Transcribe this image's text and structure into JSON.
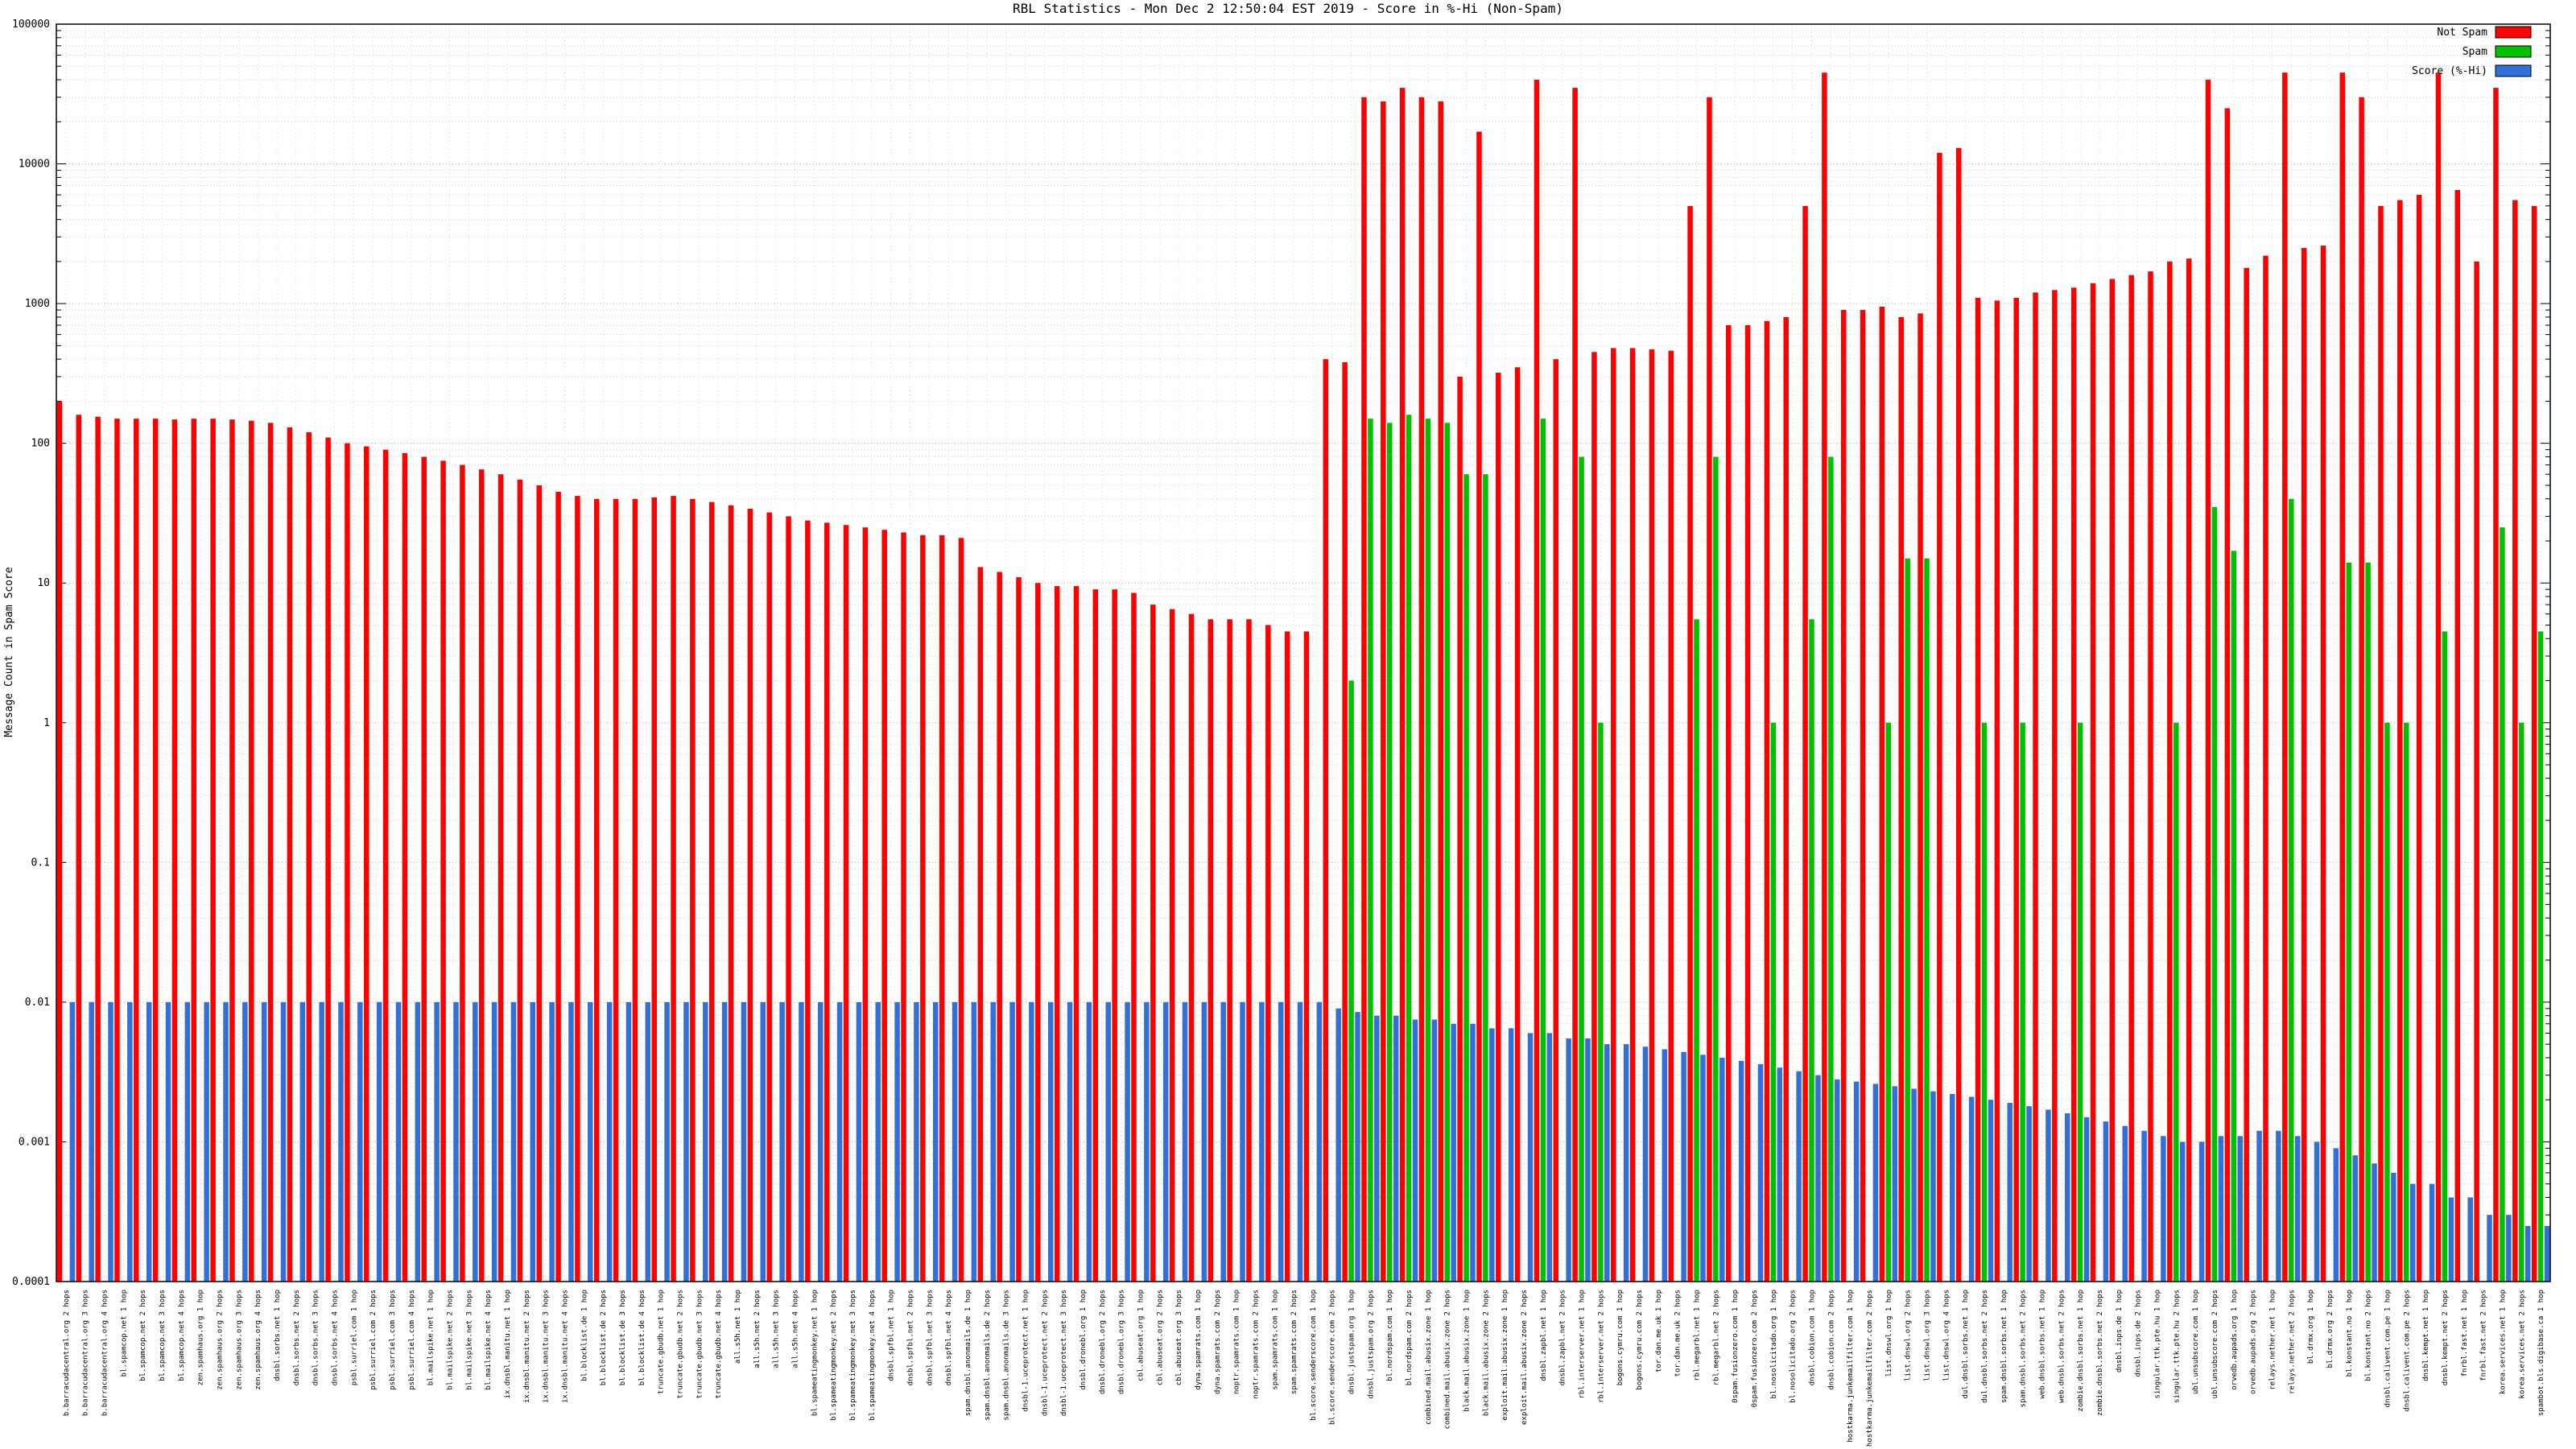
{
  "chart_data": {
    "type": "bar",
    "title": "RBL Statistics - Mon Dec  2 12:50:04 EST 2019 - Score in %-Hi (Non-Spam)",
    "ylabel": "Message Count in Spam Score",
    "xlabel": "",
    "y_scale": "log",
    "ylim": [
      0.0001,
      100000
    ],
    "y_ticks": [
      "100000",
      "10000",
      "1000",
      "100",
      "10",
      "1",
      "0.1",
      "0.01",
      "0.001",
      "0.0001"
    ],
    "grid": true,
    "legend_position": "top-right",
    "categories": [
      "b.barracudacentral.org 2 hops",
      "b.barracudacentral.org 3 hops",
      "b.barracudacentral.org 4 hops",
      "bl.spamcop.net 1 hop",
      "bl.spamcop.net 2 hops",
      "bl.spamcop.net 3 hops",
      "bl.spamcop.net 4 hops",
      "zen.spamhaus.org 1 hop",
      "zen.spamhaus.org 2 hops",
      "zen.spamhaus.org 3 hops",
      "zen.spamhaus.org 4 hops",
      "dnsbl.sorbs.net 1 hop",
      "dnsbl.sorbs.net 2 hops",
      "dnsbl.sorbs.net 3 hops",
      "dnsbl.sorbs.net 4 hops",
      "psbl.surriel.com 1 hop",
      "psbl.surriel.com 2 hops",
      "psbl.surriel.com 3 hops",
      "psbl.surriel.com 4 hops",
      "bl.mailspike.net 1 hop",
      "bl.mailspike.net 2 hops",
      "bl.mailspike.net 3 hops",
      "bl.mailspike.net 4 hops",
      "ix.dnsbl.manitu.net 1 hop",
      "ix.dnsbl.manitu.net 2 hops",
      "ix.dnsbl.manitu.net 3 hops",
      "ix.dnsbl.manitu.net 4 hops",
      "bl.blocklist.de 1 hop",
      "bl.blocklist.de 2 hops",
      "bl.blocklist.de 3 hops",
      "bl.blocklist.de 4 hops",
      "truncate.gbudb.net 1 hop",
      "truncate.gbudb.net 2 hops",
      "truncate.gbudb.net 3 hops",
      "truncate.gbudb.net 4 hops",
      "all.s5h.net 1 hop",
      "all.s5h.net 2 hops",
      "all.s5h.net 3 hops",
      "all.s5h.net 4 hops",
      "bl.spameatingmonkey.net 1 hop",
      "bl.spameatingmonkey.net 2 hops",
      "bl.spameatingmonkey.net 3 hops",
      "bl.spameatingmonkey.net 4 hops",
      "dnsbl.spfbl.net 1 hop",
      "dnsbl.spfbl.net 2 hops",
      "dnsbl.spfbl.net 3 hops",
      "dnsbl.spfbl.net 4 hops",
      "spam.dnsbl.anonmails.de 1 hop",
      "spam.dnsbl.anonmails.de 2 hops",
      "spam.dnsbl.anonmails.de 3 hops",
      "dnsbl-1.uceprotect.net 1 hop",
      "dnsbl-1.uceprotect.net 2 hops",
      "dnsbl-1.uceprotect.net 3 hops",
      "dnsbl.dronebl.org 1 hop",
      "dnsbl.dronebl.org 2 hops",
      "dnsbl.dronebl.org 3 hops",
      "cbl.abuseat.org 1 hop",
      "cbl.abuseat.org 2 hops",
      "cbl.abuseat.org 3 hops",
      "dyna.spamrats.com 1 hop",
      "dyna.spamrats.com 2 hops",
      "noptr.spamrats.com 1 hop",
      "noptr.spamrats.com 2 hops",
      "spam.spamrats.com 1 hop",
      "spam.spamrats.com 2 hops",
      "bl.score.senderscore.com 1 hop",
      "bl.score.senderscore.com 2 hops",
      "dnsbl.justspam.org 1 hop",
      "dnsbl.justspam.org 2 hops",
      "bl.nordspam.com 1 hop",
      "bl.nordspam.com 2 hops",
      "combined.mail.abusix.zone 1 hop",
      "combined.mail.abusix.zone 2 hops",
      "black.mail.abusix.zone 1 hop",
      "black.mail.abusix.zone 2 hops",
      "exploit.mail.abusix.zone 1 hop",
      "exploit.mail.abusix.zone 2 hops",
      "dnsbl.zapbl.net 1 hop",
      "dnsbl.zapbl.net 2 hops",
      "rbl.interserver.net 1 hop",
      "rbl.interserver.net 2 hops",
      "bogons.cymru.com 1 hop",
      "bogons.cymru.com 2 hops",
      "tor.dan.me.uk 1 hop",
      "tor.dan.me.uk 2 hops",
      "rbl.megarbl.net 1 hop",
      "rbl.megarbl.net 2 hops",
      "0spam.fusionzero.com 1 hop",
      "0spam.fusionzero.com 2 hops",
      "bl.nosolicitado.org 1 hop",
      "bl.nosolicitado.org 2 hops",
      "dnsbl.cobion.com 1 hop",
      "dnsbl.cobion.com 2 hops",
      "hostkarma.junkemailfilter.com 1 hop",
      "hostkarma.junkemailfilter.com 2 hops",
      "list.dnswl.org 1 hop",
      "list.dnswl.org 2 hops",
      "list.dnswl.org 3 hops",
      "list.dnswl.org 4 hops",
      "dul.dnsbl.sorbs.net 1 hop",
      "dul.dnsbl.sorbs.net 2 hops",
      "spam.dnsbl.sorbs.net 1 hop",
      "spam.dnsbl.sorbs.net 2 hops",
      "web.dnsbl.sorbs.net 1 hop",
      "web.dnsbl.sorbs.net 2 hops",
      "zombie.dnsbl.sorbs.net 1 hop",
      "zombie.dnsbl.sorbs.net 2 hops",
      "dnsbl.inps.de 1 hop",
      "dnsbl.inps.de 2 hops",
      "singular.ttk.pte.hu 1 hop",
      "singular.ttk.pte.hu 2 hops",
      "ubl.unsubscore.com 1 hop",
      "ubl.unsubscore.com 2 hops",
      "orvedb.aupads.org 1 hop",
      "orvedb.aupads.org 2 hops",
      "relays.nether.net 1 hop",
      "relays.nether.net 2 hops",
      "bl.drmx.org 1 hop",
      "bl.drmx.org 2 hops",
      "bl.konstant.no 1 hop",
      "bl.konstant.no 2 hops",
      "dnsbl.calivent.com.pe 1 hop",
      "dnsbl.calivent.com.pe 2 hops",
      "dnsbl.kempt.net 1 hop",
      "dnsbl.kempt.net 2 hops",
      "fnrbl.fast.net 1 hop",
      "fnrbl.fast.net 2 hops",
      "korea.services.net 1 hop",
      "korea.services.net 2 hops",
      "spambot.bls.digibase.ca 1 hop"
    ],
    "series": [
      {
        "name": "Not Spam",
        "color": "#ff0000",
        "values": [
          200,
          160,
          155,
          150,
          150,
          150,
          148,
          150,
          150,
          148,
          145,
          140,
          130,
          120,
          110,
          100,
          95,
          90,
          85,
          80,
          75,
          70,
          65,
          60,
          55,
          50,
          45,
          42,
          40,
          40,
          40,
          41,
          42,
          40,
          38,
          36,
          34,
          32,
          30,
          28,
          27,
          26,
          25,
          24,
          23,
          22,
          22,
          21,
          13,
          12,
          11,
          10,
          9.5,
          9.5,
          9,
          9,
          8.5,
          7,
          6.5,
          6,
          5.5,
          5.5,
          5.5,
          5,
          4.5,
          4.5,
          400,
          380,
          30000,
          28000,
          35000,
          30000,
          28000,
          300,
          17000,
          320,
          350,
          40000,
          400,
          35000,
          450,
          480,
          480,
          470,
          460,
          5000,
          30000,
          700,
          700,
          750,
          800,
          5000,
          45000,
          900,
          900,
          950,
          800,
          850,
          12000,
          13000,
          1100,
          1050,
          1100,
          1200,
          1250,
          1300,
          1400,
          1500,
          1600,
          1700,
          2000,
          2100,
          40000,
          25000,
          1800,
          2200,
          45000,
          2500,
          2600,
          45000,
          30000,
          5000,
          5500,
          6000,
          45000,
          6500,
          2000,
          35000,
          5500,
          5000
        ]
      },
      {
        "name": "Spam",
        "color": "#00c000",
        "values": [
          0,
          0,
          0,
          0,
          0,
          0,
          0,
          0,
          0,
          0,
          0,
          0,
          0,
          0,
          0,
          0,
          0,
          0,
          0,
          0,
          0,
          0,
          0,
          0,
          0,
          0,
          0,
          0,
          0,
          0,
          0,
          0,
          0,
          0,
          0,
          0,
          0,
          0,
          0,
          0,
          0,
          0,
          0,
          0,
          0,
          0,
          0,
          0,
          0,
          0,
          0,
          0,
          0,
          0,
          0,
          0,
          0,
          0,
          0,
          0,
          0,
          0,
          0,
          0,
          0,
          0,
          0,
          2,
          150,
          140,
          160,
          150,
          140,
          60,
          60,
          0,
          0,
          150,
          0,
          80,
          1,
          0,
          0,
          0,
          0,
          5.5,
          80,
          0,
          0,
          1,
          0,
          5.5,
          80,
          0,
          0,
          1,
          15,
          15,
          0,
          0,
          1,
          0,
          1,
          0,
          0,
          1,
          0,
          0,
          0,
          0,
          1,
          0,
          35,
          17,
          0,
          0,
          40,
          0,
          0,
          14,
          14,
          1,
          1,
          0,
          4.5,
          0,
          0,
          25,
          1,
          4.5
        ]
      },
      {
        "name": "Score (%-Hi)",
        "color": "#3070d8",
        "values": [
          0.01,
          0.01,
          0.01,
          0.01,
          0.01,
          0.01,
          0.01,
          0.01,
          0.01,
          0.01,
          0.01,
          0.01,
          0.01,
          0.01,
          0.01,
          0.01,
          0.01,
          0.01,
          0.01,
          0.01,
          0.01,
          0.01,
          0.01,
          0.01,
          0.01,
          0.01,
          0.01,
          0.01,
          0.01,
          0.01,
          0.01,
          0.01,
          0.01,
          0.01,
          0.01,
          0.01,
          0.01,
          0.01,
          0.01,
          0.01,
          0.01,
          0.01,
          0.01,
          0.01,
          0.01,
          0.01,
          0.01,
          0.01,
          0.01,
          0.01,
          0.01,
          0.01,
          0.01,
          0.01,
          0.01,
          0.01,
          0.01,
          0.01,
          0.01,
          0.01,
          0.01,
          0.01,
          0.01,
          0.01,
          0.01,
          0.01,
          0.009,
          0.0085,
          0.008,
          0.008,
          0.0075,
          0.0075,
          0.007,
          0.007,
          0.0065,
          0.0065,
          0.006,
          0.006,
          0.0055,
          0.0055,
          0.005,
          0.005,
          0.0048,
          0.0046,
          0.0044,
          0.0042,
          0.004,
          0.0038,
          0.0036,
          0.0034,
          0.0032,
          0.003,
          0.0028,
          0.0027,
          0.0026,
          0.0025,
          0.0024,
          0.0023,
          0.0022,
          0.0021,
          0.002,
          0.0019,
          0.0018,
          0.0017,
          0.0016,
          0.0015,
          0.0014,
          0.0013,
          0.0012,
          0.0011,
          0.001,
          0.001,
          0.0011,
          0.0011,
          0.0012,
          0.0012,
          0.0011,
          0.001,
          0.0009,
          0.0008,
          0.0007,
          0.0006,
          0.0005,
          0.0005,
          0.0004,
          0.0004,
          0.0003,
          0.0003,
          0.00025,
          0.00025
        ]
      }
    ]
  }
}
